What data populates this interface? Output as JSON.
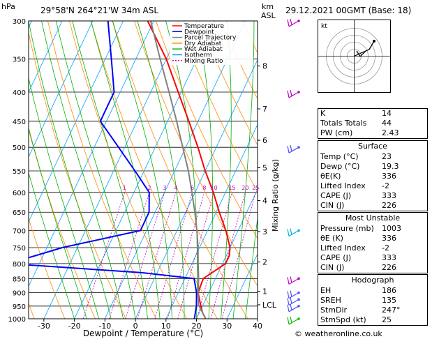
{
  "header": {
    "location": "29°58'N  264°21'W  34m  ASL",
    "hpa_label": "hPa",
    "km_label": "km",
    "asl_label": "ASL",
    "datetime": "29.12.2021  00GMT  (Base: 18)"
  },
  "legend": {
    "items": [
      {
        "label": "Temperature",
        "color": "#ff0000",
        "dash": ""
      },
      {
        "label": "Dewpoint",
        "color": "#0000ff",
        "dash": ""
      },
      {
        "label": "Parcel Trajectory",
        "color": "#808080",
        "dash": ""
      },
      {
        "label": "Dry Adiabat",
        "color": "#ff8c00",
        "dash": ""
      },
      {
        "label": "Wet Adiabat",
        "color": "#00b000",
        "dash": ""
      },
      {
        "label": "Isotherm",
        "color": "#00a0ff",
        "dash": ""
      },
      {
        "label": "Mixing Ratio",
        "color": "#c000c0",
        "dash": "2,2"
      }
    ]
  },
  "chart_data": {
    "type": "line",
    "xlabel": "Dewpoint / Temperature (°C)",
    "ylabel_right": "Mixing Ratio (g/kg)",
    "pressure_ticks": [
      300,
      350,
      400,
      450,
      500,
      550,
      600,
      650,
      700,
      750,
      800,
      850,
      900,
      950,
      1000
    ],
    "temperature_ticks": [
      -30,
      -20,
      -10,
      0,
      10,
      20,
      30,
      40
    ],
    "xlim": [
      -35,
      40
    ],
    "ylim": [
      1000,
      300
    ],
    "km_ticks": [
      {
        "label": "8",
        "p": 360
      },
      {
        "label": "7",
        "p": 428
      },
      {
        "label": "6",
        "p": 486
      },
      {
        "label": "5",
        "p": 543
      },
      {
        "label": "4",
        "p": 620
      },
      {
        "label": "3",
        "p": 703
      },
      {
        "label": "2",
        "p": 795
      },
      {
        "label": "1",
        "p": 895
      },
      {
        "label": "LCL",
        "p": 945
      }
    ],
    "mixing_ratio_labels": [
      "1",
      "2",
      "3",
      "4",
      "6",
      "8",
      "10",
      "15",
      "20",
      "25"
    ],
    "mixing_ratio_values": [
      1,
      2,
      3,
      4,
      6,
      8,
      10,
      15,
      20,
      25
    ],
    "series": [
      {
        "name": "Temperature",
        "color": "#ff0000",
        "points": [
          [
            1000,
            23
          ],
          [
            975,
            21
          ],
          [
            950,
            19.5
          ],
          [
            925,
            18
          ],
          [
            900,
            16.5
          ],
          [
            850,
            16
          ],
          [
            820,
            19
          ],
          [
            800,
            21
          ],
          [
            775,
            21
          ],
          [
            750,
            20
          ],
          [
            700,
            16
          ],
          [
            650,
            11
          ],
          [
            600,
            6
          ],
          [
            550,
            0
          ],
          [
            500,
            -6
          ],
          [
            450,
            -13
          ],
          [
            400,
            -21
          ],
          [
            350,
            -30
          ],
          [
            300,
            -42
          ]
        ]
      },
      {
        "name": "Dewpoint",
        "color": "#0000ff",
        "points": [
          [
            1000,
            19.3
          ],
          [
            950,
            18
          ],
          [
            900,
            16
          ],
          [
            850,
            13
          ],
          [
            830,
            -5
          ],
          [
            800,
            -50
          ],
          [
            750,
            -35
          ],
          [
            700,
            -12
          ],
          [
            650,
            -12
          ],
          [
            600,
            -15
          ],
          [
            550,
            -23
          ],
          [
            500,
            -32
          ],
          [
            450,
            -42
          ],
          [
            400,
            -42
          ],
          [
            350,
            -48
          ],
          [
            300,
            -55
          ]
        ]
      },
      {
        "name": "Parcel Trajectory",
        "color": "#808080",
        "points": [
          [
            1000,
            23
          ],
          [
            945,
            18.5
          ],
          [
            900,
            16.5
          ],
          [
            850,
            14.5
          ],
          [
            800,
            12
          ],
          [
            750,
            9.5
          ],
          [
            700,
            6.5
          ],
          [
            650,
            3
          ],
          [
            600,
            -1
          ],
          [
            550,
            -5.5
          ],
          [
            500,
            -11
          ],
          [
            450,
            -17
          ],
          [
            400,
            -24
          ],
          [
            350,
            -32
          ],
          [
            300,
            -41
          ]
        ]
      }
    ],
    "wind_barbs": [
      {
        "p": 300,
        "color": "#c000c0"
      },
      {
        "p": 400,
        "color": "#c000c0"
      },
      {
        "p": 500,
        "color": "#5050ff"
      },
      {
        "p": 700,
        "color": "#00b0e0"
      },
      {
        "p": 850,
        "color": "#c000c0"
      },
      {
        "p": 900,
        "color": "#5050ff"
      },
      {
        "p": 925,
        "color": "#5050ff"
      },
      {
        "p": 950,
        "color": "#5050ff"
      },
      {
        "p": 1000,
        "color": "#00c000"
      }
    ]
  },
  "hodograph": {
    "label": "kt"
  },
  "indices": {
    "rows": [
      {
        "label": "K",
        "value": "14"
      },
      {
        "label": "Totals Totals",
        "value": "44"
      },
      {
        "label": "PW (cm)",
        "value": "2.43"
      }
    ]
  },
  "surface": {
    "title": "Surface",
    "rows": [
      {
        "label": "Temp (°C)",
        "value": "23"
      },
      {
        "label": "Dewp (°C)",
        "value": "19.3"
      },
      {
        "label": "θE(K)",
        "value": "336"
      },
      {
        "label": "Lifted Index",
        "value": "-2"
      },
      {
        "label": "CAPE (J)",
        "value": "333"
      },
      {
        "label": "CIN (J)",
        "value": "226"
      }
    ]
  },
  "most_unstable": {
    "title": "Most Unstable",
    "rows": [
      {
        "label": "Pressure (mb)",
        "value": "1003"
      },
      {
        "label": "θE (K)",
        "value": "336"
      },
      {
        "label": "Lifted Index",
        "value": "-2"
      },
      {
        "label": "CAPE (J)",
        "value": "333"
      },
      {
        "label": "CIN (J)",
        "value": "226"
      }
    ]
  },
  "hodograph_table": {
    "title": "Hodograph",
    "rows": [
      {
        "label": "EH",
        "value": "186"
      },
      {
        "label": "SREH",
        "value": "135"
      },
      {
        "label": "StmDir",
        "value": "247°"
      },
      {
        "label": "StmSpd (kt)",
        "value": "25"
      }
    ]
  },
  "credit": "© weatheronline.co.uk"
}
